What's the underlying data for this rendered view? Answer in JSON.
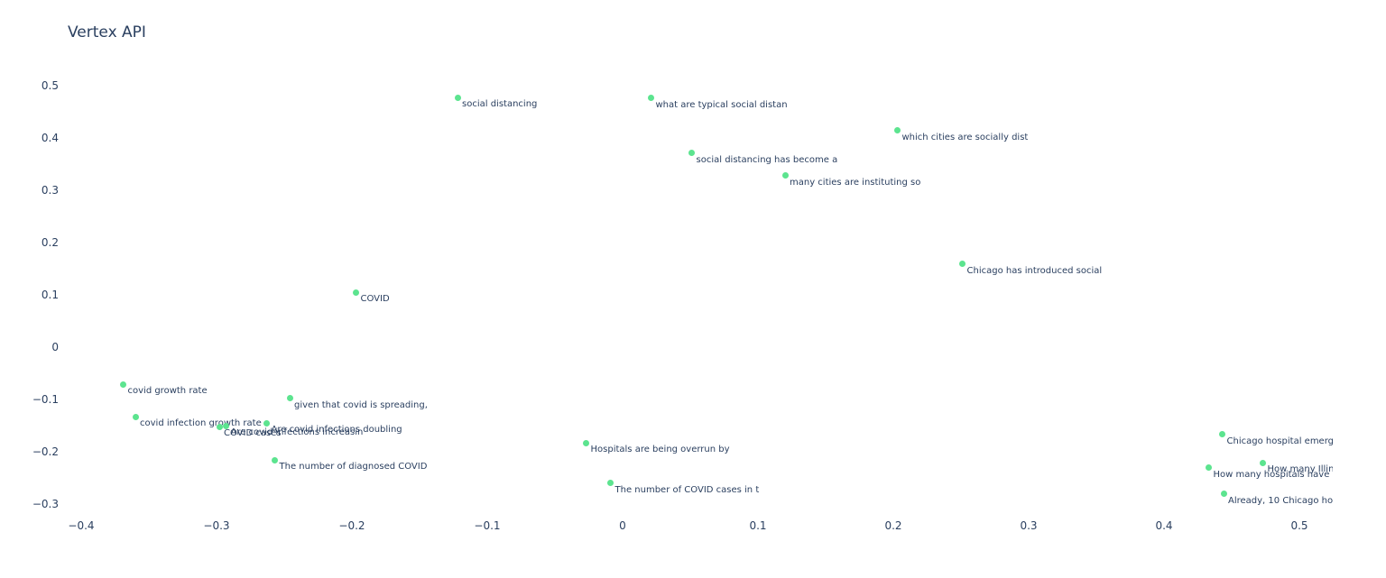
{
  "page": {
    "background": "#ffffff"
  },
  "chart_data": {
    "type": "scatter",
    "title": "Vertex API",
    "marker_color": "#5ce48f",
    "label_color": "#2a3f5f",
    "axis_text_color": "#2a3f5f",
    "grid": false,
    "legend_position": "none",
    "xlim": [
      -0.46,
      0.56
    ],
    "ylim": [
      -0.34,
      0.55
    ],
    "x_tick_values": [
      -0.4,
      -0.3,
      -0.2,
      -0.1,
      0,
      0.1,
      0.2,
      0.3,
      0.4,
      0.5
    ],
    "x_tick_labels": [
      "−0.4",
      "−0.3",
      "−0.2",
      "−0.1",
      "0",
      "0.1",
      "0.2",
      "0.3",
      "0.4",
      "0.5"
    ],
    "y_tick_values": [
      0.5,
      0.4,
      0.3,
      0.2,
      0.1,
      0,
      -0.1,
      -0.2,
      -0.3
    ],
    "y_tick_labels": [
      "0.5",
      "0.4",
      "0.3",
      "0.2",
      "0.1",
      "0",
      "−0.1",
      "−0.2",
      "−0.3"
    ],
    "points": [
      {
        "x": -0.122,
        "y": 0.477,
        "label": "social distancing"
      },
      {
        "x": 0.021,
        "y": 0.476,
        "label": "what are typical social distan"
      },
      {
        "x": 0.203,
        "y": 0.414,
        "label": "which cities are socially dist"
      },
      {
        "x": 0.051,
        "y": 0.371,
        "label": "social distancing has become a"
      },
      {
        "x": 0.12,
        "y": 0.328,
        "label": "many cities are instituting so"
      },
      {
        "x": 0.251,
        "y": 0.159,
        "label": "Chicago has introduced social"
      },
      {
        "x": -0.197,
        "y": 0.105,
        "label": "COVID"
      },
      {
        "x": -0.369,
        "y": -0.071,
        "label": "covid growth rate"
      },
      {
        "x": -0.246,
        "y": -0.098,
        "label": "given that covid is spreading,"
      },
      {
        "x": -0.36,
        "y": -0.133,
        "label": "covid infection growth rate"
      },
      {
        "x": -0.298,
        "y": -0.152,
        "label": "COVID cases"
      },
      {
        "x": -0.293,
        "y": -0.15,
        "label": "Are covid infections increasin"
      },
      {
        "x": -0.263,
        "y": -0.145,
        "label": "Are covid infections doubling"
      },
      {
        "x": -0.257,
        "y": -0.216,
        "label": "The number of diagnosed COVID"
      },
      {
        "x": -0.027,
        "y": -0.183,
        "label": "Hospitals are being overrun by"
      },
      {
        "x": -0.009,
        "y": -0.26,
        "label": "The number of COVID cases in t"
      },
      {
        "x": 0.443,
        "y": -0.167,
        "label": "Chicago hospital emerg"
      },
      {
        "x": 0.473,
        "y": -0.221,
        "label": "How many Illin"
      },
      {
        "x": 0.433,
        "y": -0.231,
        "label": "How many hospitals have s"
      },
      {
        "x": 0.444,
        "y": -0.281,
        "label": "Already, 10 Chicago ho"
      }
    ]
  }
}
